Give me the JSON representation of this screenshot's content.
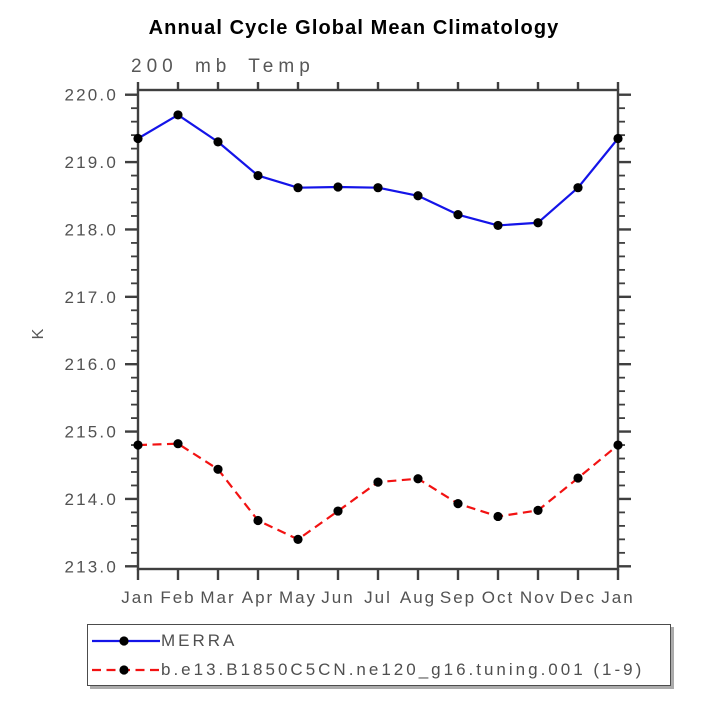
{
  "title": "Annual Cycle Global Mean Climatology",
  "subtitle": "200 mb Temp",
  "chart_data": {
    "type": "line",
    "title": "Annual Cycle Global Mean Climatology",
    "subtitle": "200 mb Temp",
    "xlabel": "",
    "ylabel": "K",
    "categories": [
      "Jan",
      "Feb",
      "Mar",
      "Apr",
      "May",
      "Jun",
      "Jul",
      "Aug",
      "Sep",
      "Oct",
      "Nov",
      "Dec",
      "Jan"
    ],
    "ylim": [
      212.96,
      220.07
    ],
    "y_ticks": [
      220.0,
      219.0,
      218.0,
      217.0,
      216.0,
      215.0,
      214.0,
      213.0
    ],
    "y_tick_labels": [
      "220.0",
      "219.0",
      "218.0",
      "217.0",
      "216.0",
      "215.0",
      "214.0",
      "213.0"
    ],
    "y_minor_step": 0.2,
    "grid": false,
    "legend_position": "bottom-left",
    "series": [
      {
        "name": "MERRA",
        "style": "solid",
        "color": "#1414e8",
        "marker": "circle",
        "marker_color": "#000000",
        "values": [
          219.35,
          219.7,
          219.3,
          218.8,
          218.62,
          218.63,
          218.62,
          218.5,
          218.22,
          218.06,
          218.1,
          218.62,
          219.35
        ]
      },
      {
        "name": "b.e13.B1850C5CN.ne120_g16.tuning.001 (1-9)",
        "style": "dashed",
        "color": "#f21212",
        "marker": "circle",
        "marker_color": "#000000",
        "values": [
          214.8,
          214.82,
          214.44,
          213.68,
          213.4,
          213.82,
          214.25,
          214.3,
          213.93,
          213.74,
          213.83,
          214.31,
          214.8
        ]
      }
    ],
    "axis_color": "#3f3f3f",
    "tick_label_color": "#525252"
  }
}
